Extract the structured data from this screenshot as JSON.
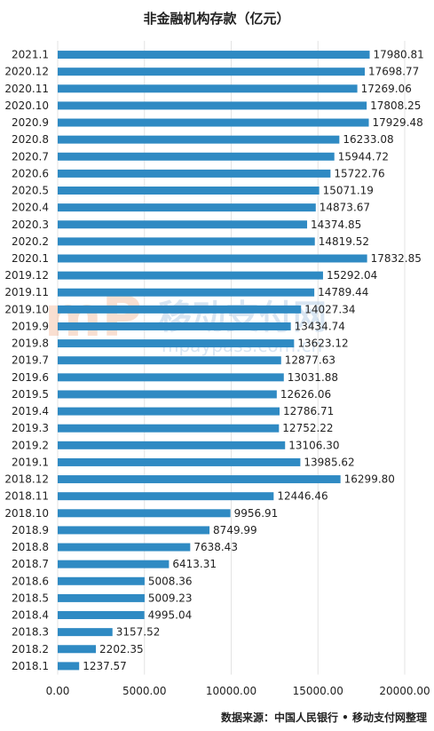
{
  "chart_data": {
    "type": "bar",
    "orientation": "horizontal",
    "title": "非金融机构存款（亿元）",
    "xlabel": "",
    "ylabel": "",
    "categories": [
      "2021.1",
      "2020.12",
      "2020.11",
      "2020.10",
      "2020.9",
      "2020.8",
      "2020.7",
      "2020.6",
      "2020.5",
      "2020.4",
      "2020.3",
      "2020.2",
      "2020.1",
      "2019.12",
      "2019.11",
      "2019.10",
      "2019.9",
      "2019.8",
      "2019.7",
      "2019.6",
      "2019.5",
      "2019.4",
      "2019.3",
      "2019.2",
      "2019.1",
      "2018.12",
      "2018.11",
      "2018.10",
      "2018.9",
      "2018.8",
      "2018.7",
      "2018.6",
      "2018.5",
      "2018.4",
      "2018.3",
      "2018.2",
      "2018.1"
    ],
    "values": [
      17980.81,
      17698.77,
      17269.06,
      17808.25,
      17929.48,
      16233.08,
      15944.72,
      15722.76,
      15071.19,
      14873.67,
      14374.85,
      14819.52,
      17832.85,
      15292.04,
      14789.44,
      14027.34,
      13434.74,
      13623.12,
      12877.63,
      13031.88,
      12626.06,
      12786.71,
      12752.22,
      13106.3,
      13985.62,
      16299.8,
      12446.46,
      9956.91,
      8749.99,
      7638.43,
      6413.31,
      5008.36,
      5009.23,
      4995.04,
      3157.52,
      2202.35,
      1237.57
    ],
    "value_labels": [
      "17980.81",
      "17698.77",
      "17269.06",
      "17808.25",
      "17929.48",
      "16233.08",
      "15944.72",
      "15722.76",
      "15071.19",
      "14873.67",
      "14374.85",
      "14819.52",
      "17832.85",
      "15292.04",
      "14789.44",
      "14027.34",
      "13434.74",
      "13623.12",
      "12877.63",
      "13031.88",
      "12626.06",
      "12786.71",
      "12752.22",
      "13106.30",
      "13985.62",
      "16299.80",
      "12446.46",
      "9956.91",
      "8749.99",
      "7638.43",
      "6413.31",
      "5008.36",
      "5009.23",
      "4995.04",
      "3157.52",
      "2202.35",
      "1237.57"
    ],
    "xlim": [
      0,
      20000
    ],
    "x_ticks": [
      "0.00",
      "5000.00",
      "10000.00",
      "15000.00",
      "20000.00"
    ],
    "grid": true,
    "bar_color": "#2f8ac3",
    "gridline_color": "#e3e3e3"
  },
  "source_note": "数据来源：中国人民银行 • 移动支付网整理",
  "watermark": {
    "logo_text": "mP",
    "cn_text": "移动支付网",
    "url_text": "mpaypass.com.cn",
    "color": "#a9c7e3"
  }
}
